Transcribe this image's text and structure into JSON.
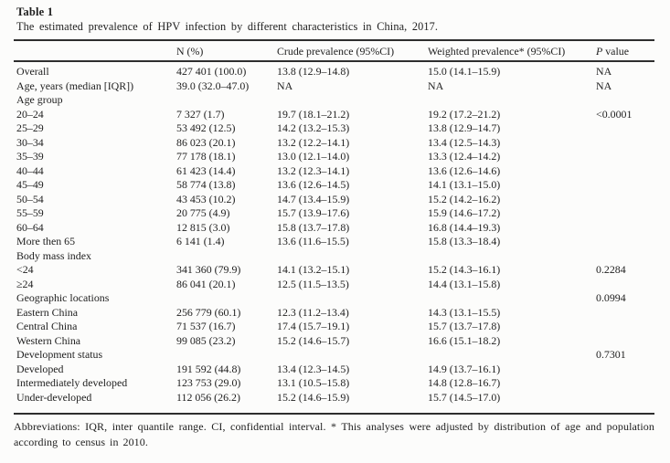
{
  "table": {
    "label": "Table 1",
    "caption": "The estimated prevalence of HPV infection by different characteristics in China, 2017.",
    "columns": {
      "characteristic": "",
      "n": "N (%)",
      "crude": "Crude prevalence (95%CI)",
      "weighted": "Weighted prevalence* (95%CI)",
      "p_italic": "P",
      "p_rest": " value"
    },
    "rows": [
      {
        "label": "Overall",
        "n": "427 401 (100.0)",
        "crude": "13.8 (12.9–14.8)",
        "weighted": "15.0 (14.1–15.9)",
        "p": "NA"
      },
      {
        "label": "Age, years (median [IQR])",
        "n": "39.0 (32.0–47.0)",
        "crude": "NA",
        "weighted": "NA",
        "p": "NA"
      },
      {
        "label": "Age group",
        "n": "",
        "crude": "",
        "weighted": "",
        "p": ""
      },
      {
        "label": "20–24",
        "n": "7 327 (1.7)",
        "crude": "19.7 (18.1–21.2)",
        "weighted": "19.2 (17.2–21.2)",
        "p": "<0.0001"
      },
      {
        "label": "25–29",
        "n": "53 492 (12.5)",
        "crude": "14.2 (13.2–15.3)",
        "weighted": "13.8 (12.9–14.7)",
        "p": ""
      },
      {
        "label": "30–34",
        "n": "86 023 (20.1)",
        "crude": "13.2 (12.2–14.1)",
        "weighted": "13.4 (12.5–14.3)",
        "p": ""
      },
      {
        "label": "35–39",
        "n": "77 178 (18.1)",
        "crude": "13.0 (12.1–14.0)",
        "weighted": "13.3 (12.4–14.2)",
        "p": ""
      },
      {
        "label": "40–44",
        "n": "61 423 (14.4)",
        "crude": "13.2 (12.3–14.1)",
        "weighted": "13.6 (12.6–14.6)",
        "p": ""
      },
      {
        "label": "45–49",
        "n": "58 774 (13.8)",
        "crude": "13.6 (12.6–14.5)",
        "weighted": "14.1 (13.1–15.0)",
        "p": ""
      },
      {
        "label": "50–54",
        "n": "43 453 (10.2)",
        "crude": "14.7 (13.4–15.9)",
        "weighted": "15.2 (14.2–16.2)",
        "p": ""
      },
      {
        "label": "55–59",
        "n": "20 775 (4.9)",
        "crude": "15.7 (13.9–17.6)",
        "weighted": "15.9 (14.6–17.2)",
        "p": ""
      },
      {
        "label": "60–64",
        "n": "12 815 (3.0)",
        "crude": "15.8 (13.7–17.8)",
        "weighted": "16.8 (14.4–19.3)",
        "p": ""
      },
      {
        "label": "More then 65",
        "n": "6 141 (1.4)",
        "crude": "13.6 (11.6–15.5)",
        "weighted": "15.8 (13.3–18.4)",
        "p": ""
      },
      {
        "label": "Body mass index",
        "n": "",
        "crude": "",
        "weighted": "",
        "p": ""
      },
      {
        "label": "<24",
        "n": "341 360 (79.9)",
        "crude": "14.1 (13.2–15.1)",
        "weighted": "15.2 (14.3–16.1)",
        "p": "0.2284"
      },
      {
        "label": "≥24",
        "n": "86 041 (20.1)",
        "crude": "12.5 (11.5–13.5)",
        "weighted": "14.4 (13.1–15.8)",
        "p": ""
      },
      {
        "label": "Geographic locations",
        "n": "",
        "crude": "",
        "weighted": "",
        "p": "0.0994"
      },
      {
        "label": "Eastern China",
        "n": "256 779 (60.1)",
        "crude": "12.3 (11.2–13.4)",
        "weighted": "14.3 (13.1–15.5)",
        "p": ""
      },
      {
        "label": "Central China",
        "n": "71 537 (16.7)",
        "crude": "17.4 (15.7–19.1)",
        "weighted": "15.7 (13.7–17.8)",
        "p": ""
      },
      {
        "label": "Western China",
        "n": "99 085 (23.2)",
        "crude": "15.2 (14.6–15.7)",
        "weighted": "16.6 (15.1–18.2)",
        "p": ""
      },
      {
        "label": "Development status",
        "n": "",
        "crude": "",
        "weighted": "",
        "p": "0.7301"
      },
      {
        "label": "Developed",
        "n": "191 592 (44.8)",
        "crude": "13.4 (12.3–14.5)",
        "weighted": "14.9 (13.7–16.1)",
        "p": ""
      },
      {
        "label": "Intermediately developed",
        "n": "123 753 (29.0)",
        "crude": "13.1 (10.5–15.8)",
        "weighted": "14.8 (12.8–16.7)",
        "p": ""
      },
      {
        "label": "Under-developed",
        "n": "112 056 (26.2)",
        "crude": "15.2 (14.6–15.9)",
        "weighted": "15.7 (14.5–17.0)",
        "p": ""
      }
    ],
    "footnote": "Abbreviations: IQR, inter quantile range. CI, confidential interval. * This analyses were adjusted by distribution of age and population according to census in 2010."
  },
  "colors": {
    "background": "#fcfcfb",
    "text": "#1e1e1e",
    "rule": "#2e2e2e"
  }
}
